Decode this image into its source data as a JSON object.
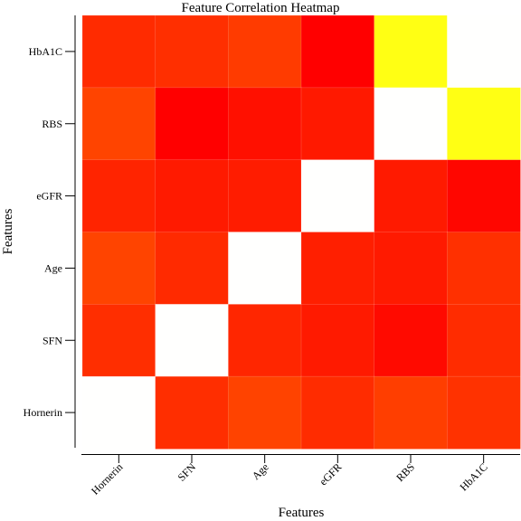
{
  "chart_data": {
    "type": "heatmap",
    "title": "Feature Correlation Heatmap",
    "xlabel": "Features",
    "ylabel": "Features",
    "x_categories": [
      "Hornerin",
      "SFN",
      "Age",
      "eGFR",
      "RBS",
      "HbA1C"
    ],
    "y_categories": [
      "HbA1C",
      "RBS",
      "eGFR",
      "Age",
      "SFN",
      "Hornerin"
    ],
    "colors": [
      "#ff2b00",
      "#ff2f00",
      "#ff3b00",
      "#ff0000",
      "#ffff14",
      "#fffffe",
      "#ff4400",
      "#ff0000",
      "#ff1000",
      "#ff1900",
      "#fffffe",
      "#ffff14",
      "#ff2400",
      "#ff1a00",
      "#ff1c00",
      "#fffffe",
      "#ff1a00",
      "#ff0600",
      "#ff4400",
      "#ff2a00",
      "#fffffe",
      "#ff1f00",
      "#ff1a00",
      "#ff3000",
      "#ff2e00",
      "#fffffe",
      "#ff2600",
      "#ff1a00",
      "#ff0a00",
      "#ff2c00",
      "#fffffe",
      "#ff2e00",
      "#ff4300",
      "#ff2c00",
      "#ff3e00",
      "#ff3200"
    ],
    "colormap": "autumn, white to yellow to red",
    "grid": false,
    "legend": "none"
  }
}
